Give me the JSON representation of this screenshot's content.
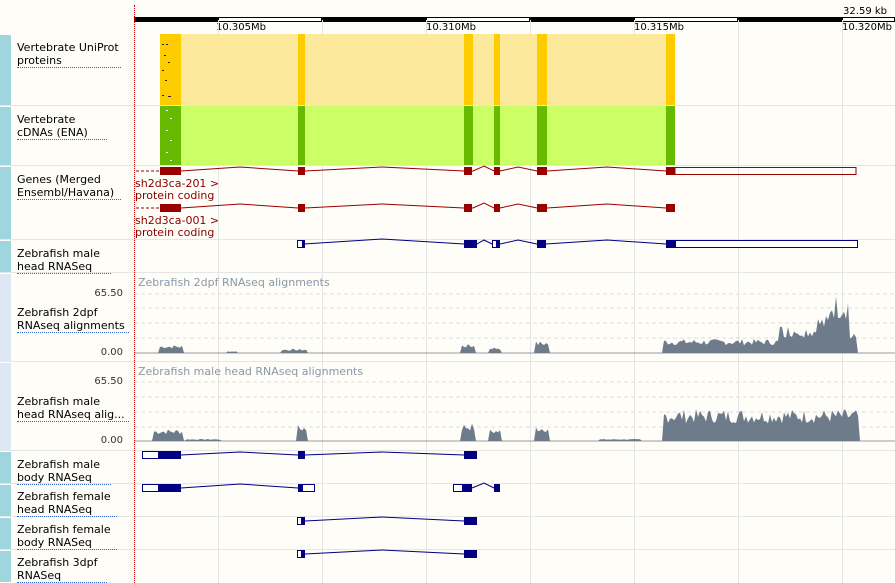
{
  "ruler": {
    "total_length": "32.59 kb",
    "ticks": [
      {
        "label": "10.305Mb"
      },
      {
        "label": "10.310Mb"
      },
      {
        "label": "10.315Mb"
      },
      {
        "label": "10.320Mb"
      }
    ]
  },
  "tracks": [
    {
      "name": "Vertebrate UniProt proteins"
    },
    {
      "name": "Vertebrate cDNAs (ENA)"
    },
    {
      "name": "Genes (Merged Ensembl/Havana)"
    },
    {
      "name": "Zebrafish male head RNASeq"
    },
    {
      "name": "Zebrafish 2dpf RNAseq alignments"
    },
    {
      "name": "Zebrafish male head RNAseq alig..."
    },
    {
      "name": "Zebrafish male body RNASeq"
    },
    {
      "name": "Zebrafish female head RNASeq"
    },
    {
      "name": "Zebrafish female body RNASeq"
    },
    {
      "name": "Zebrafish 3dpf RNASeq"
    }
  ],
  "transcripts": [
    {
      "id": "sh2d3ca-201 >",
      "biotype": "protein coding"
    },
    {
      "id": "sh2d3ca-001 >",
      "biotype": "protein coding"
    }
  ],
  "graphs": [
    {
      "title": "Zebrafish 2dpf RNAseq alignments",
      "ymax": "65.50",
      "ymin": "0.00"
    },
    {
      "title": "Zebrafish male head RNAseq alignments",
      "ymax": "65.50",
      "ymin": "0.00"
    }
  ],
  "colors": {
    "uniprot_bg": "#fde99b",
    "uniprot_exon": "#ffcc00",
    "cdna_bg": "#ccff66",
    "cdna_exon": "#66bb00",
    "gene": "#990000",
    "rnaseq": "#000080",
    "coverage": "#6e7b8b",
    "handle": "#9fd6dd"
  }
}
